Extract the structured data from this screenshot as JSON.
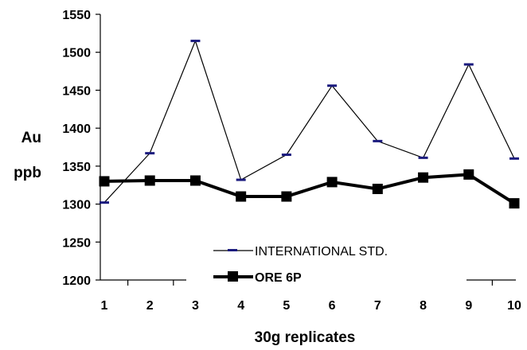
{
  "chart_data": {
    "type": "line",
    "xlabel": "30g replicates",
    "ylabel": [
      "Au",
      "ppb"
    ],
    "x": [
      "1",
      "2",
      "3",
      "4",
      "5",
      "6",
      "7",
      "8",
      "9",
      "10"
    ],
    "yticks": [
      "1200",
      "1250",
      "1300",
      "1350",
      "1400",
      "1450",
      "1500",
      "1550"
    ],
    "ylim": [
      1200,
      1550
    ],
    "grid": false,
    "legend_position": "bottom-right",
    "series": [
      {
        "name": "INTERNATIONAL STD.",
        "values": [
          1302,
          1367,
          1515,
          1332,
          1365,
          1456,
          1383,
          1361,
          1484,
          1360
        ],
        "color": "#000000",
        "marker": "dash",
        "marker_color": "#1a1a7e"
      },
      {
        "name": "ORE 6P",
        "values": [
          1330,
          1331,
          1331,
          1310,
          1310,
          1329,
          1320,
          1335,
          1339,
          1301
        ],
        "color": "#000000",
        "marker": "square",
        "marker_color": "#000000"
      }
    ]
  }
}
